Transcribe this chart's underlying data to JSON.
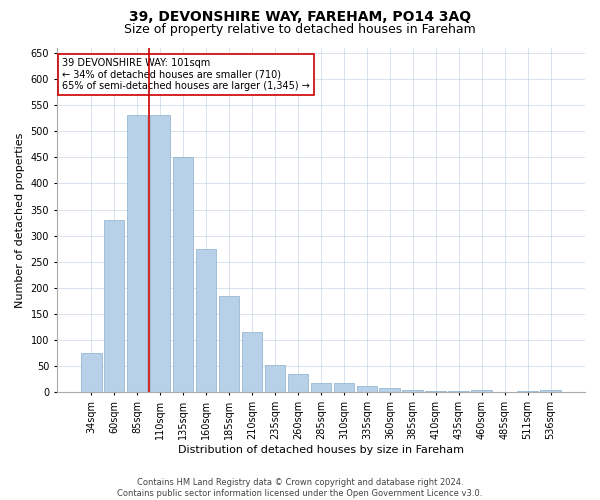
{
  "title": "39, DEVONSHIRE WAY, FAREHAM, PO14 3AQ",
  "subtitle": "Size of property relative to detached houses in Fareham",
  "xlabel": "Distribution of detached houses by size in Fareham",
  "ylabel": "Number of detached properties",
  "categories": [
    "34sqm",
    "60sqm",
    "85sqm",
    "110sqm",
    "135sqm",
    "160sqm",
    "185sqm",
    "210sqm",
    "235sqm",
    "260sqm",
    "285sqm",
    "310sqm",
    "335sqm",
    "360sqm",
    "385sqm",
    "410sqm",
    "435sqm",
    "460sqm",
    "485sqm",
    "511sqm",
    "536sqm"
  ],
  "values": [
    75,
    330,
    530,
    530,
    450,
    275,
    185,
    115,
    52,
    35,
    18,
    18,
    12,
    8,
    5,
    3,
    3,
    5,
    0,
    3,
    5
  ],
  "bar_color": "#b8d0e8",
  "bar_edge_color": "#8ab0cc",
  "vline_x": 2.5,
  "vline_color": "#cc0000",
  "annotation_text": "39 DEVONSHIRE WAY: 101sqm\n← 34% of detached houses are smaller (710)\n65% of semi-detached houses are larger (1,345) →",
  "annotation_box_color": "#ffffff",
  "annotation_box_edge": "#cc0000",
  "ylim": [
    0,
    660
  ],
  "yticks": [
    0,
    50,
    100,
    150,
    200,
    250,
    300,
    350,
    400,
    450,
    500,
    550,
    600,
    650
  ],
  "footer_line1": "Contains HM Land Registry data © Crown copyright and database right 2024.",
  "footer_line2": "Contains public sector information licensed under the Open Government Licence v3.0.",
  "background_color": "#ffffff",
  "grid_color": "#c8d8e8",
  "title_fontsize": 10,
  "subtitle_fontsize": 9,
  "tick_fontsize": 7,
  "ylabel_fontsize": 8,
  "xlabel_fontsize": 8,
  "annotation_fontsize": 7,
  "footer_fontsize": 6
}
